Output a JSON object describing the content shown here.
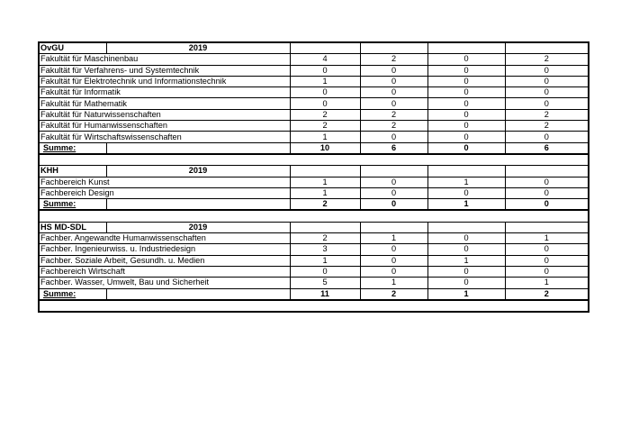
{
  "sections": [
    {
      "institution": "OvGU",
      "year": "2019",
      "rows": [
        {
          "label": "Fakultät für Maschinenbau",
          "values": [
            "4",
            "2",
            "0",
            "2"
          ]
        },
        {
          "label": "Fakultät für Verfahrens- und Systemtechnik",
          "values": [
            "0",
            "0",
            "0",
            "0"
          ]
        },
        {
          "label": "Fakultät für Elektrotechnik und Informationstechnik",
          "values": [
            "1",
            "0",
            "0",
            "0"
          ]
        },
        {
          "label": "Fakultät für Informatik",
          "values": [
            "0",
            "0",
            "0",
            "0"
          ]
        },
        {
          "label": "Fakultät für Mathematik",
          "values": [
            "0",
            "0",
            "0",
            "0"
          ]
        },
        {
          "label": "Fakultät für Naturwissenschaften",
          "values": [
            "2",
            "2",
            "0",
            "2"
          ]
        },
        {
          "label": "Fakultät für Humanwissenschaften",
          "values": [
            "2",
            "2",
            "0",
            "2"
          ]
        },
        {
          "label": "Fakultät für Wirtschaftswissenschaften",
          "values": [
            "1",
            "0",
            "0",
            "0"
          ]
        }
      ],
      "sum_label": "Summe:",
      "sum_values": [
        "10",
        "6",
        "0",
        "6"
      ]
    },
    {
      "institution": "KHH",
      "year": "2019",
      "rows": [
        {
          "label": "Fachbereich Kunst",
          "values": [
            "1",
            "0",
            "1",
            "0"
          ]
        },
        {
          "label": "Fachbereich Design",
          "values": [
            "1",
            "0",
            "0",
            "0"
          ]
        }
      ],
      "sum_label": "Summe:",
      "sum_values": [
        "2",
        "0",
        "1",
        "0"
      ]
    },
    {
      "institution": "HS MD-SDL",
      "year": "2019",
      "rows": [
        {
          "label": "Fachber. Angewandte Humanwissenschaften",
          "values": [
            "2",
            "1",
            "0",
            "1"
          ]
        },
        {
          "label": "Fachber. Ingenieurwiss. u. Industriedesign",
          "values": [
            "3",
            "0",
            "0",
            "0"
          ]
        },
        {
          "label": "Fachber. Soziale Arbeit, Gesundh. u. Medien",
          "values": [
            "1",
            "0",
            "1",
            "0"
          ]
        },
        {
          "label": "Fachbereich Wirtschaft",
          "values": [
            "0",
            "0",
            "0",
            "0"
          ]
        },
        {
          "label": "Fachber. Wasser, Umwelt, Bau und Sicherheit",
          "values": [
            "5",
            "1",
            "0",
            "1"
          ]
        }
      ],
      "sum_label": "Summe:",
      "sum_values": [
        "11",
        "2",
        "1",
        "2"
      ]
    }
  ]
}
